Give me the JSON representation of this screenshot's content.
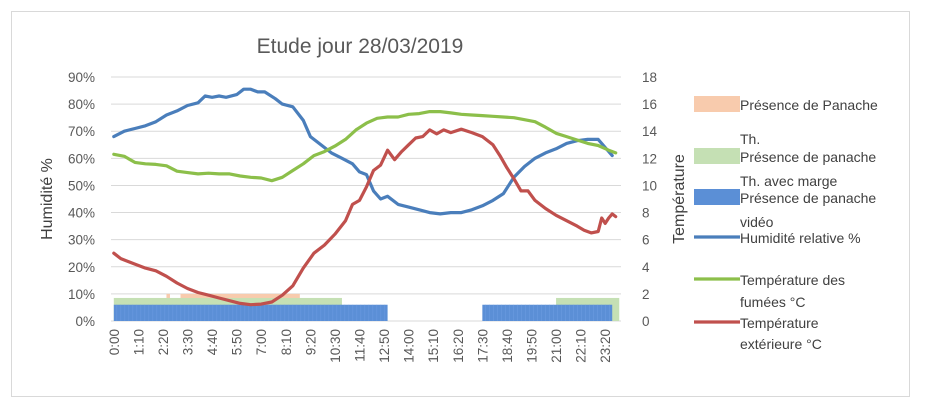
{
  "chart_data": {
    "type": "line",
    "title": "Etude jour 28/03/2019",
    "ylabel": "Humidité %",
    "y2label": "Température",
    "ylim": [
      0,
      0.9
    ],
    "y2lim": [
      0,
      18
    ],
    "yticks": [
      "0%",
      "10%",
      "20%",
      "30%",
      "40%",
      "50%",
      "60%",
      "70%",
      "80%",
      "90%"
    ],
    "y2ticks": [
      "0",
      "2",
      "4",
      "6",
      "8",
      "10",
      "12",
      "14",
      "16",
      "18"
    ],
    "xticks": [
      "0:00",
      "1:10",
      "2:20",
      "3:30",
      "4:40",
      "5:50",
      "7:00",
      "8:10",
      "9:20",
      "10:30",
      "11:40",
      "12:50",
      "14:00",
      "15:10",
      "16:20",
      "17:30",
      "18:40",
      "19:50",
      "21:00",
      "22:10",
      "23:20"
    ],
    "grid": "horizontal",
    "legend_position": "right",
    "colors": {
      "panache_th": "#f8cbad",
      "panache_marge": "#c5e0b4",
      "panache_video": "#5b8fd6",
      "humidite": "#4a7ebb",
      "temp_fumees": "#8cbf4a",
      "temp_ext": "#c0504d",
      "grid": "#d9d9d9"
    },
    "areas": [
      {
        "name": "Présence de Panache Th.",
        "value": 0.1,
        "segments": [
          [
            "2:30",
            "2:40"
          ],
          [
            "3:10",
            "8:50"
          ]
        ]
      },
      {
        "name": "Présence de panache Th. avec marge",
        "value": 0.085,
        "segments": [
          [
            "0:00",
            "10:50"
          ],
          [
            "21:00",
            "24:00"
          ]
        ]
      },
      {
        "name": "Présence de panache vidéo",
        "value": 0.06,
        "segments": [
          [
            "0:00",
            "13:00"
          ],
          [
            "17:30",
            "23:40"
          ]
        ]
      }
    ],
    "series": [
      {
        "name": "Humidité relative %",
        "axis": "left",
        "points": [
          [
            "0:00",
            0.68
          ],
          [
            "0:30",
            0.7
          ],
          [
            "1:00",
            0.71
          ],
          [
            "1:30",
            0.72
          ],
          [
            "2:00",
            0.735
          ],
          [
            "2:30",
            0.76
          ],
          [
            "3:00",
            0.775
          ],
          [
            "3:30",
            0.795
          ],
          [
            "4:00",
            0.805
          ],
          [
            "4:20",
            0.83
          ],
          [
            "4:40",
            0.825
          ],
          [
            "5:00",
            0.83
          ],
          [
            "5:20",
            0.825
          ],
          [
            "5:50",
            0.835
          ],
          [
            "6:10",
            0.855
          ],
          [
            "6:30",
            0.855
          ],
          [
            "6:50",
            0.845
          ],
          [
            "7:10",
            0.845
          ],
          [
            "7:40",
            0.82
          ],
          [
            "8:00",
            0.8
          ],
          [
            "8:30",
            0.79
          ],
          [
            "9:00",
            0.74
          ],
          [
            "9:20",
            0.68
          ],
          [
            "9:50",
            0.65
          ],
          [
            "10:20",
            0.62
          ],
          [
            "10:50",
            0.6
          ],
          [
            "11:20",
            0.58
          ],
          [
            "11:40",
            0.55
          ],
          [
            "12:00",
            0.54
          ],
          [
            "12:20",
            0.48
          ],
          [
            "12:40",
            0.45
          ],
          [
            "13:00",
            0.46
          ],
          [
            "13:30",
            0.43
          ],
          [
            "14:00",
            0.42
          ],
          [
            "14:30",
            0.41
          ],
          [
            "15:00",
            0.4
          ],
          [
            "15:30",
            0.395
          ],
          [
            "16:00",
            0.4
          ],
          [
            "16:30",
            0.4
          ],
          [
            "17:00",
            0.41
          ],
          [
            "17:30",
            0.425
          ],
          [
            "18:00",
            0.445
          ],
          [
            "18:30",
            0.47
          ],
          [
            "19:00",
            0.53
          ],
          [
            "19:30",
            0.57
          ],
          [
            "20:00",
            0.6
          ],
          [
            "20:30",
            0.62
          ],
          [
            "21:00",
            0.635
          ],
          [
            "21:30",
            0.655
          ],
          [
            "22:00",
            0.665
          ],
          [
            "22:30",
            0.67
          ],
          [
            "23:00",
            0.67
          ],
          [
            "23:20",
            0.64
          ],
          [
            "23:40",
            0.61
          ]
        ]
      },
      {
        "name": "Température des fumées °C",
        "axis": "right",
        "points": [
          [
            "0:00",
            12.3
          ],
          [
            "0:30",
            12.15
          ],
          [
            "1:00",
            11.7
          ],
          [
            "1:30",
            11.6
          ],
          [
            "2:00",
            11.55
          ],
          [
            "2:30",
            11.45
          ],
          [
            "3:00",
            11.05
          ],
          [
            "3:30",
            10.95
          ],
          [
            "4:00",
            10.85
          ],
          [
            "4:30",
            10.9
          ],
          [
            "5:00",
            10.85
          ],
          [
            "5:30",
            10.85
          ],
          [
            "6:00",
            10.7
          ],
          [
            "6:30",
            10.6
          ],
          [
            "7:00",
            10.55
          ],
          [
            "7:30",
            10.35
          ],
          [
            "8:00",
            10.6
          ],
          [
            "8:30",
            11.1
          ],
          [
            "9:00",
            11.6
          ],
          [
            "9:30",
            12.2
          ],
          [
            "10:00",
            12.5
          ],
          [
            "10:30",
            12.9
          ],
          [
            "11:00",
            13.4
          ],
          [
            "11:30",
            14.1
          ],
          [
            "12:00",
            14.6
          ],
          [
            "12:30",
            14.95
          ],
          [
            "13:00",
            15.05
          ],
          [
            "13:30",
            15.05
          ],
          [
            "14:00",
            15.25
          ],
          [
            "14:30",
            15.3
          ],
          [
            "15:00",
            15.45
          ],
          [
            "15:30",
            15.45
          ],
          [
            "16:00",
            15.35
          ],
          [
            "16:30",
            15.25
          ],
          [
            "17:00",
            15.2
          ],
          [
            "17:30",
            15.15
          ],
          [
            "18:00",
            15.1
          ],
          [
            "18:30",
            15.05
          ],
          [
            "19:00",
            15.0
          ],
          [
            "19:30",
            14.85
          ],
          [
            "20:00",
            14.7
          ],
          [
            "20:30",
            14.3
          ],
          [
            "21:00",
            13.85
          ],
          [
            "21:30",
            13.6
          ],
          [
            "22:00",
            13.35
          ],
          [
            "22:30",
            13.1
          ],
          [
            "23:00",
            12.95
          ],
          [
            "23:30",
            12.6
          ],
          [
            "23:50",
            12.4
          ]
        ]
      },
      {
        "name": "Température extérieure °C",
        "axis": "right",
        "points": [
          [
            "0:00",
            5.0
          ],
          [
            "0:20",
            4.6
          ],
          [
            "0:40",
            4.4
          ],
          [
            "1:00",
            4.2
          ],
          [
            "1:30",
            3.9
          ],
          [
            "2:00",
            3.7
          ],
          [
            "2:30",
            3.3
          ],
          [
            "3:00",
            2.8
          ],
          [
            "3:30",
            2.4
          ],
          [
            "4:00",
            2.1
          ],
          [
            "4:30",
            1.9
          ],
          [
            "5:00",
            1.7
          ],
          [
            "5:30",
            1.5
          ],
          [
            "6:00",
            1.3
          ],
          [
            "6:30",
            1.2
          ],
          [
            "7:00",
            1.25
          ],
          [
            "7:30",
            1.4
          ],
          [
            "8:00",
            1.9
          ],
          [
            "8:30",
            2.6
          ],
          [
            "9:00",
            3.9
          ],
          [
            "9:30",
            5.0
          ],
          [
            "10:00",
            5.6
          ],
          [
            "10:30",
            6.4
          ],
          [
            "11:00",
            7.4
          ],
          [
            "11:20",
            8.6
          ],
          [
            "11:40",
            8.9
          ],
          [
            "12:00",
            9.9
          ],
          [
            "12:20",
            11.1
          ],
          [
            "12:40",
            11.5
          ],
          [
            "13:00",
            12.6
          ],
          [
            "13:20",
            11.9
          ],
          [
            "13:40",
            12.5
          ],
          [
            "14:00",
            13.0
          ],
          [
            "14:20",
            13.5
          ],
          [
            "14:40",
            13.6
          ],
          [
            "15:00",
            14.1
          ],
          [
            "15:20",
            13.8
          ],
          [
            "15:40",
            14.1
          ],
          [
            "16:00",
            13.9
          ],
          [
            "16:30",
            14.15
          ],
          [
            "17:00",
            13.9
          ],
          [
            "17:30",
            13.6
          ],
          [
            "18:00",
            13.0
          ],
          [
            "18:20",
            12.2
          ],
          [
            "18:40",
            11.3
          ],
          [
            "19:00",
            10.5
          ],
          [
            "19:20",
            9.6
          ],
          [
            "19:40",
            9.6
          ],
          [
            "20:00",
            8.9
          ],
          [
            "20:30",
            8.3
          ],
          [
            "21:00",
            7.8
          ],
          [
            "21:30",
            7.4
          ],
          [
            "22:00",
            7.0
          ],
          [
            "22:20",
            6.7
          ],
          [
            "22:40",
            6.5
          ],
          [
            "23:00",
            6.6
          ],
          [
            "23:10",
            7.6
          ],
          [
            "23:20",
            7.2
          ],
          [
            "23:30",
            7.6
          ],
          [
            "23:40",
            7.9
          ],
          [
            "23:50",
            7.7
          ]
        ]
      }
    ],
    "legend": [
      {
        "key": "panache_th",
        "shape": "box",
        "lines": [
          "Présence de Panache",
          "Th."
        ]
      },
      {
        "key": "panache_marge",
        "shape": "box",
        "lines": [
          "Présence de panache",
          "Th. avec marge"
        ]
      },
      {
        "key": "panache_video",
        "shape": "box",
        "lines": [
          "Présence de panache",
          "vidéo"
        ]
      },
      {
        "key": "humidite",
        "shape": "line",
        "lines": [
          "Humidité relative %"
        ]
      },
      {
        "key": "temp_fumees",
        "shape": "line",
        "lines": [
          "Température des",
          "fumées °C"
        ]
      },
      {
        "key": "temp_ext",
        "shape": "line",
        "lines": [
          "Température",
          "extérieure °C"
        ]
      }
    ]
  }
}
